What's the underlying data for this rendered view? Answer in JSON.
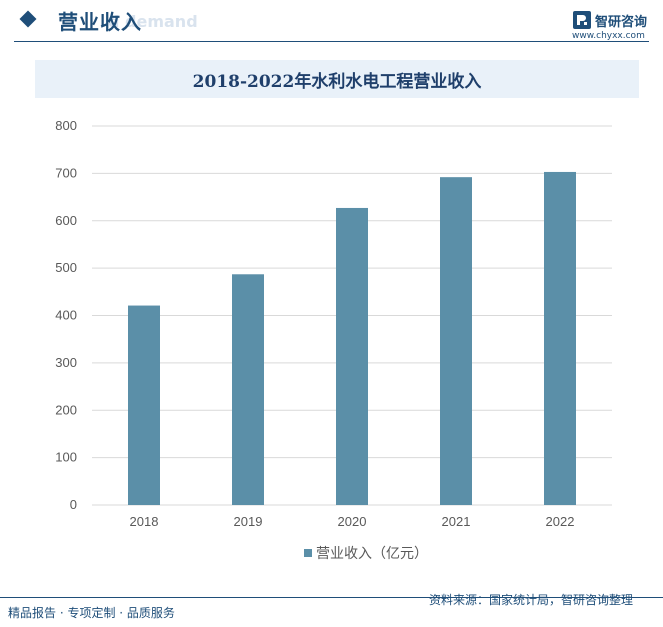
{
  "header": {
    "section_title": "营业收入",
    "ghost_text": "d demand",
    "brand_name": "智研咨询",
    "brand_url": "www.chyxx.com"
  },
  "colors": {
    "accent": "#1f4e79",
    "bar": "#5b8fa8",
    "title_band": "#e9f1f9"
  },
  "chart_data": {
    "type": "bar",
    "title": "2018-2022年水利水电工程营业收入",
    "categories": [
      "2018",
      "2019",
      "2020",
      "2021",
      "2022"
    ],
    "series": [
      {
        "name": "营业收入（亿元）",
        "values": [
          421,
          487,
          627,
          692,
          703
        ]
      }
    ],
    "y_ticks": [
      "0",
      "100",
      "200",
      "300",
      "400",
      "500",
      "600",
      "700",
      "800"
    ],
    "ylim": [
      0,
      800
    ],
    "grid": true,
    "legend": "bottom"
  },
  "footer": {
    "left": "精品报告 · 专项定制 · 品质服务",
    "source": "资料来源：国家统计局，智研咨询整理"
  }
}
